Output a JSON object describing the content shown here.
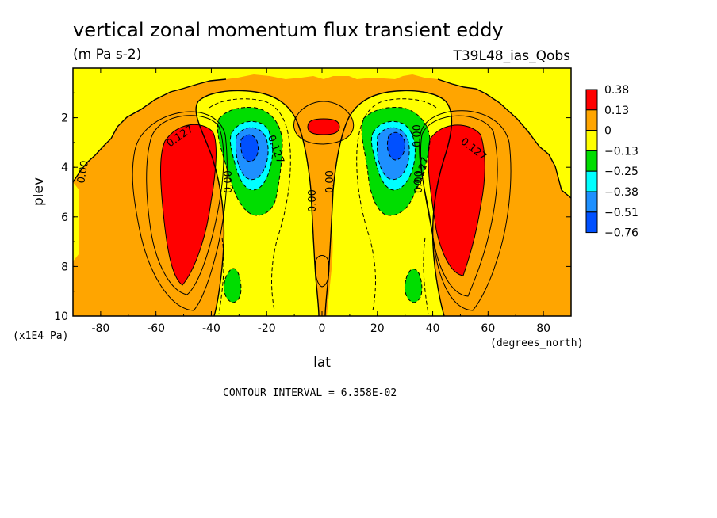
{
  "chart_data": {
    "type": "contour",
    "title": "vertical zonal momentum flux transient eddy",
    "units": "(m Pa s-2)",
    "run_label": "T39L48_ias_Qobs",
    "xlabel": "lat",
    "x_units": "(degrees_north)",
    "ylabel": "plev",
    "y_units": "(x1E4 Pa)",
    "xlim": [
      -90,
      90
    ],
    "ylim": [
      10,
      0
    ],
    "x_ticks": [
      -80,
      -60,
      -40,
      -20,
      0,
      20,
      40,
      60,
      80
    ],
    "y_ticks": [
      2,
      4,
      6,
      8,
      10
    ],
    "x_tick_labels": [
      "-80",
      "-60",
      "-40",
      "-20",
      "0",
      "20",
      "40",
      "60",
      "80"
    ],
    "y_tick_labels": [
      "2",
      "4",
      "6",
      "8",
      "10"
    ],
    "contour_interval_text": "CONTOUR INTERVAL = 6.358E-02",
    "contour_labels": [
      "0.127",
      "-0.127",
      "0.00",
      "0.127",
      "-0.127",
      "0.00",
      "0.00",
      "0.00",
      "0.00",
      "0.00"
    ],
    "colorbar": {
      "levels": [
        "0.38",
        "0.13",
        "0",
        "-0.13",
        "-0.25",
        "-0.38",
        "-0.51",
        "-0.76"
      ],
      "colors": [
        "#ff0000",
        "#ffa500",
        "#ffff00",
        "#00dd00",
        "#00ffff",
        "#1e90ff",
        "#0050ff"
      ]
    },
    "colors": {
      "background_field": "#ffa500",
      "positive_strong": "#ff0000",
      "near_zero": "#ffff00",
      "negative_1": "#00dd00",
      "negative_2": "#00ffff",
      "negative_3": "#1e90ff",
      "negative_4": "#0050ff"
    },
    "features": [
      {
        "name": "SH positive maximum",
        "lat": -50,
        "plev": 4.5,
        "value_range": "> 0.13"
      },
      {
        "name": "NH positive maximum",
        "lat": 50,
        "plev": 4.5,
        "value_range": "> 0.13"
      },
      {
        "name": "SH negative minimum",
        "lat": -25,
        "plev": 3.2,
        "value_range": "< -0.51"
      },
      {
        "name": "NH negative minimum",
        "lat": 25,
        "plev": 3.2,
        "value_range": "< -0.51"
      },
      {
        "name": "equatorial positive core",
        "lat": 0,
        "plev": 2.5,
        "value_range": "> 0.13"
      }
    ]
  }
}
